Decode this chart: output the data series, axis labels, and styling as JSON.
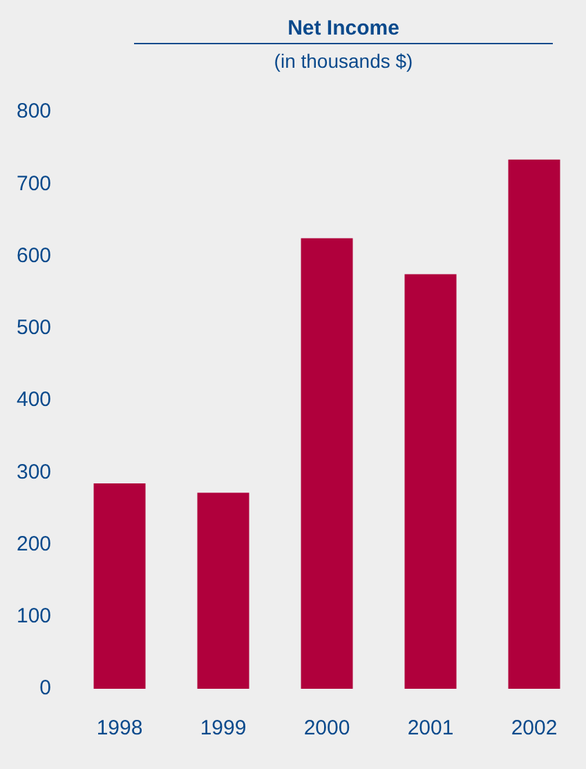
{
  "chart_data": {
    "type": "bar",
    "title": "Net Income",
    "subtitle": "(in thousands $)",
    "categories": [
      "1998",
      "1999",
      "2000",
      "2001",
      "2002"
    ],
    "values": [
      285,
      272,
      625,
      575,
      734
    ],
    "color": "#b0003c",
    "ylim": [
      0,
      800
    ],
    "yticks": [
      0,
      100,
      200,
      300,
      400,
      500,
      600,
      700,
      800
    ],
    "grid": false,
    "legend": false
  }
}
